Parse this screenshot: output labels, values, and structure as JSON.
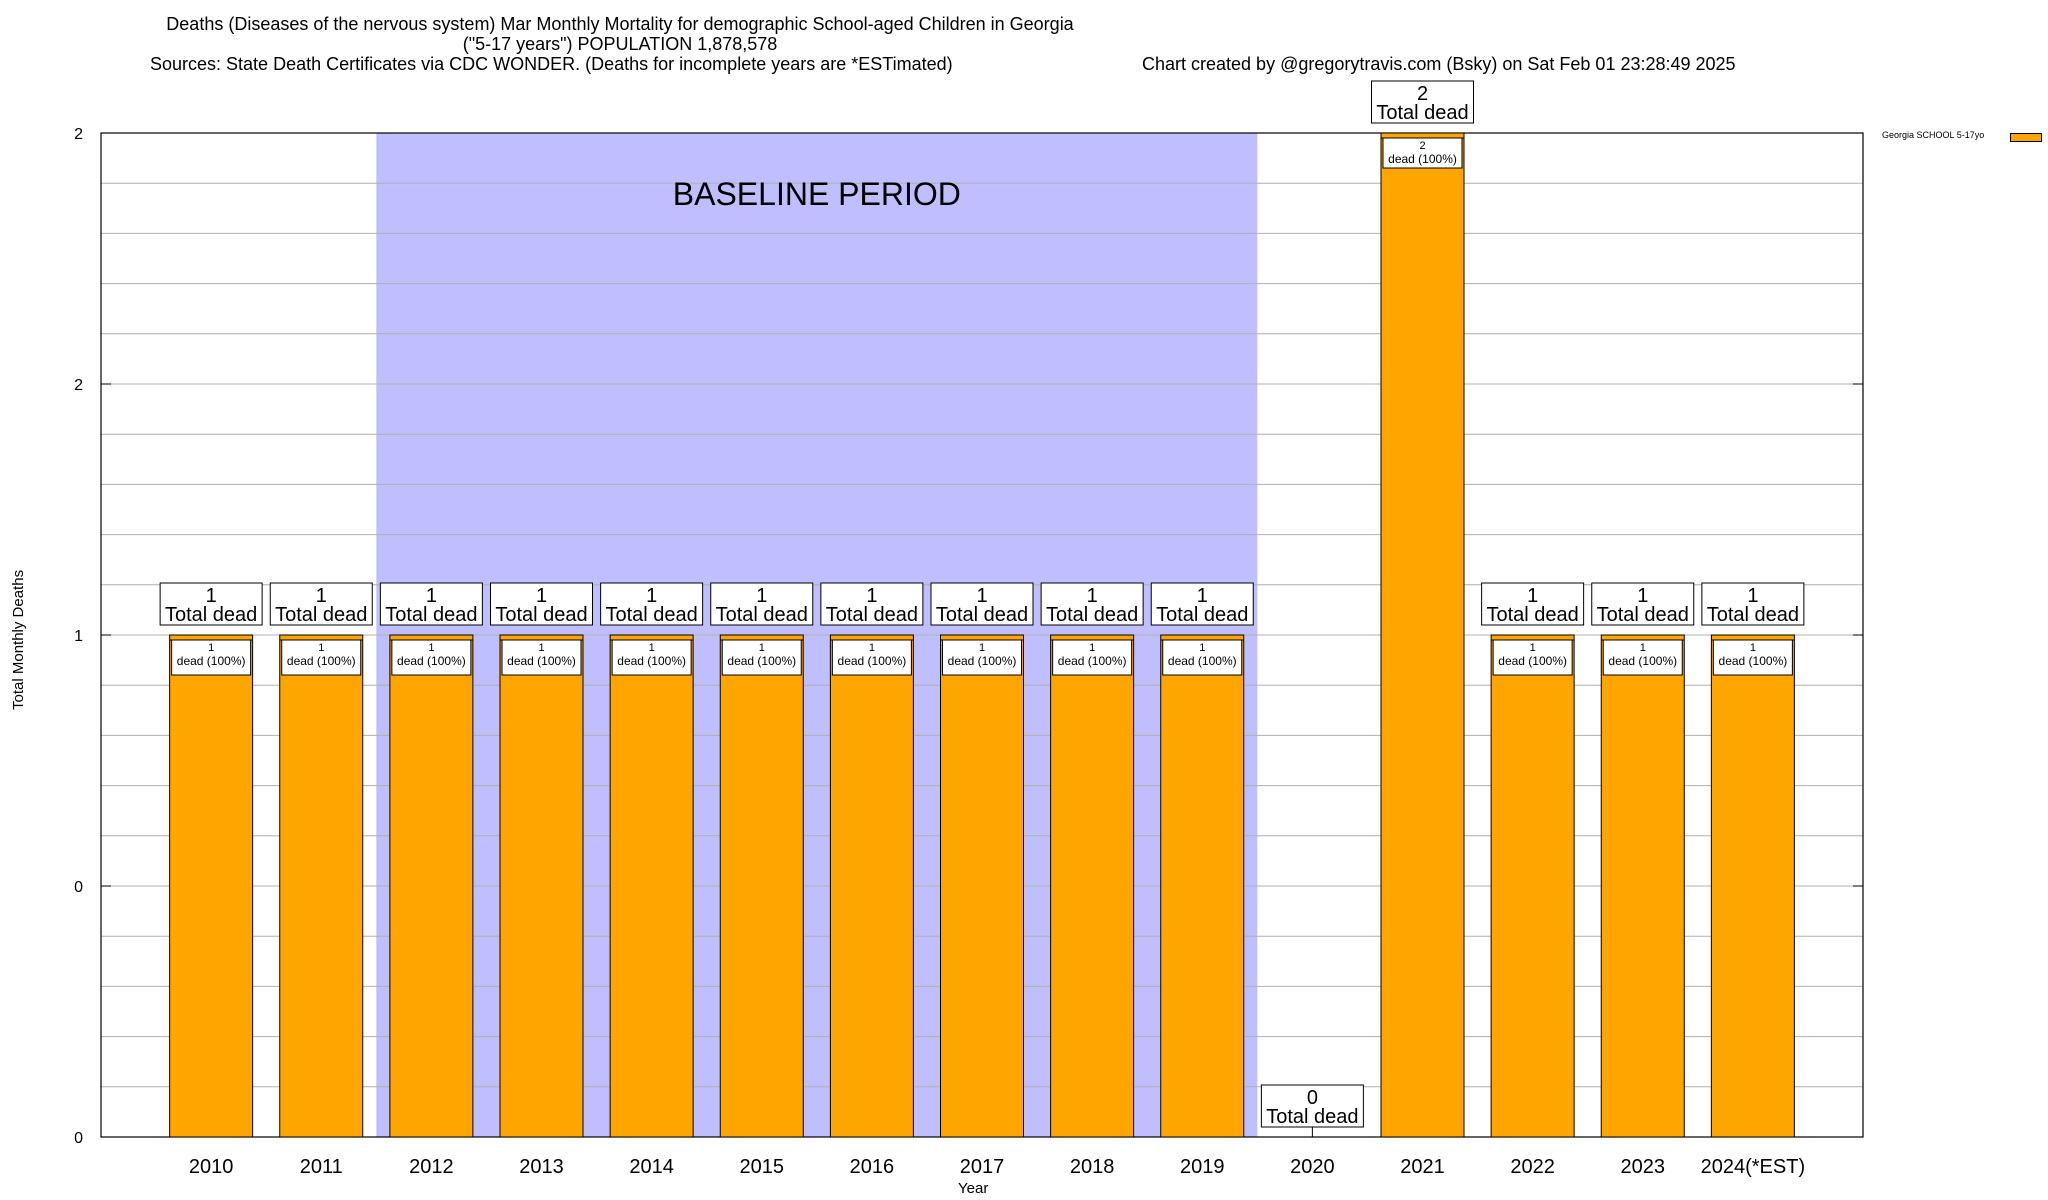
{
  "header": {
    "title_line1": "Deaths (Diseases of the nervous system) Mar Monthly Mortality for demographic School-aged Children in Georgia",
    "title_line2": "(\"5-17 years\") POPULATION 1,878,578",
    "sources": "Sources: State Death Certificates via CDC WONDER. (Deaths for incomplete years are *ESTimated)",
    "credit": "Chart created by @gregorytravis.com (Bsky) on Sat Feb 01 23:28:49 2025"
  },
  "chart_data": {
    "type": "bar",
    "title": "Deaths (Diseases of the nervous system) Mar Monthly Mortality for demographic School-aged Children in Georgia",
    "xlabel": "Year",
    "ylabel": "Total Monthly Deaths",
    "categories": [
      "2010",
      "2011",
      "2012",
      "2013",
      "2014",
      "2015",
      "2016",
      "2017",
      "2018",
      "2019",
      "2020",
      "2021",
      "2022",
      "2023",
      "2024(*EST)"
    ],
    "series": [
      {
        "name": "Georgia SCHOOL 5-17yo",
        "color": "#FFA500",
        "values": [
          1,
          1,
          1,
          1,
          1,
          1,
          1,
          1,
          1,
          1,
          0,
          2,
          1,
          1,
          1
        ]
      }
    ],
    "ylim": [
      0,
      2
    ],
    "yticks": [
      {
        "value": 0,
        "label": "0"
      },
      {
        "value": 0.5,
        "label": "0"
      },
      {
        "value": 1,
        "label": "1"
      },
      {
        "value": 1.5,
        "label": "2"
      },
      {
        "value": 2,
        "label": "2"
      }
    ],
    "total_label_suffix": "Total dead",
    "segment_label_template": "dead (100%)",
    "baseline": {
      "label": "BASELINE PERIOD",
      "from": "2012",
      "to": "2019",
      "color": "#BFBFFF"
    },
    "grid": true,
    "legend_position": "top-right"
  }
}
